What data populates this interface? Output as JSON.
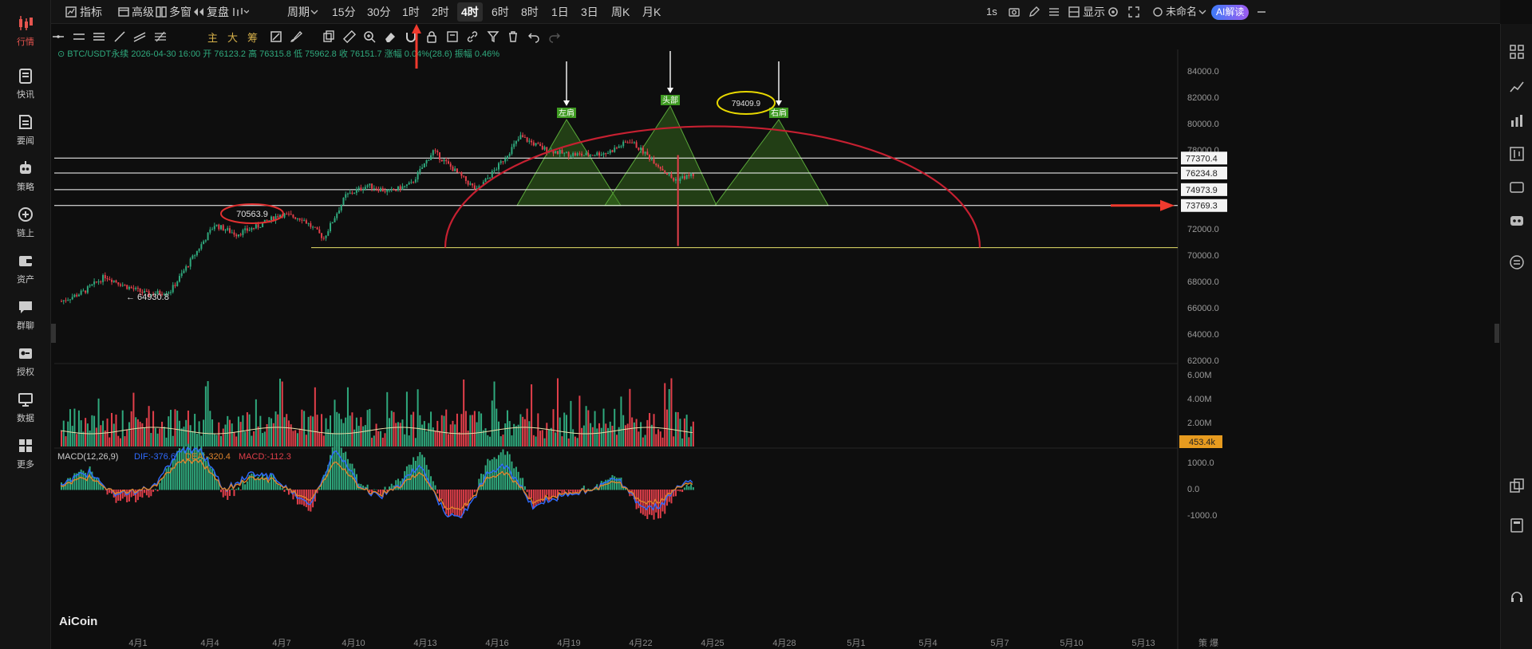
{
  "sidebar": {
    "items": [
      {
        "label": "行情",
        "icon": "candlestick-icon"
      },
      {
        "label": "快讯",
        "icon": "flash-news-icon"
      },
      {
        "label": "要闻",
        "icon": "news-icon"
      },
      {
        "label": "策略",
        "icon": "robot-icon"
      },
      {
        "label": "链上",
        "icon": "chain-icon"
      },
      {
        "label": "资产",
        "icon": "wallet-icon"
      },
      {
        "label": "群聊",
        "icon": "chat-icon"
      },
      {
        "label": "授权",
        "icon": "key-icon"
      },
      {
        "label": "数据",
        "icon": "monitor-icon"
      },
      {
        "label": "更多",
        "icon": "grid-icon"
      }
    ]
  },
  "toolbar": {
    "indicators": "指标",
    "advanced": "高级",
    "multi_window": "多窗",
    "replay": "复盘",
    "period": "周期",
    "intervals": [
      "15分",
      "30分",
      "1时",
      "2时",
      "4时",
      "6时",
      "8时",
      "1日",
      "3日",
      "周K",
      "月K"
    ],
    "active_interval": "4时",
    "refresh": "1s",
    "display": "显示",
    "layout_name": "未命名",
    "ai_label": "AI解读"
  },
  "drawing": {
    "text_tools": [
      "主",
      "大",
      "筹"
    ]
  },
  "chart": {
    "info": {
      "symbol": "BTC/USDT永续",
      "time": "2026-04-30 16:00",
      "open_label": "开",
      "open": "76123.2",
      "high_label": "高",
      "high": "76315.8",
      "low_label": "低",
      "low": "75962.8",
      "close_label": "收",
      "close": "76151.7",
      "change_label": "涨幅",
      "change": "0.04%(28.6)",
      "amp_label": "振幅",
      "amp": "0.46%"
    },
    "price_ticks": [
      "84000.0",
      "82000.0",
      "80000.0",
      "78000.0",
      "76000.0",
      "74000.0",
      "72000.0",
      "70000.0",
      "68000.0",
      "66000.0",
      "64000.0",
      "62000.0"
    ],
    "level_tags": [
      "77370.4",
      "76234.8",
      "74973.9",
      "73769.3"
    ],
    "annotations": {
      "left_shoulder": "左肩",
      "head": "头部",
      "right_shoulder": "右肩",
      "circled_high": "79409.9",
      "circled_low": "70563.9",
      "min_label": "← 64930.8"
    },
    "volume_ticks": [
      "6.00M",
      "4.00M",
      "2.00M"
    ],
    "volume_current": "453.4k",
    "macd": {
      "title": "MACD(12,26,9)",
      "dif": "DIF:-376.6",
      "dea": "DEA:-320.4",
      "macd": "MACD:-112.3"
    },
    "macd_ticks": [
      "1000.0",
      "0.0",
      "-1000.0"
    ],
    "dates": [
      "4月1",
      "4月4",
      "4月7",
      "4月10",
      "4月13",
      "4月16",
      "4月19",
      "4月22",
      "4月25",
      "4月28",
      "5月1",
      "5月4",
      "5月7",
      "5月10",
      "5月13"
    ],
    "corner_label": "策 爆",
    "watermark": "AiCoin",
    "colors": {
      "up": "#2fa97d",
      "down": "#e23f4a",
      "ellipse": "#c62031",
      "pattern_fill": "#3b7a1f",
      "level_line": "#ffffff",
      "support_line": "#e8e36a",
      "dif": "#2f6bff",
      "dea": "#e0842c",
      "volume_ma": "#e8dda8"
    }
  },
  "chart_data": {
    "type": "candlestick",
    "symbol": "BTC/USDT永续",
    "interval": "4时",
    "x_range": [
      "4月1",
      "5月13"
    ],
    "ylim": [
      61000,
      85000
    ],
    "levels": [
      77370.4,
      76234.8,
      74973.9,
      73769.3,
      70563.9
    ],
    "ohlc_path": [
      {
        "date": "4月1",
        "price": 66500
      },
      {
        "date": "4月2",
        "price": 67200
      },
      {
        "date": "4月3",
        "price": 68400
      },
      {
        "date": "4月4",
        "price": 67600
      },
      {
        "date": "4月5",
        "price": 67000
      },
      {
        "date": "4月6",
        "price": 67300
      },
      {
        "date": "4月7",
        "price": 69800
      },
      {
        "date": "4月8",
        "price": 72300
      },
      {
        "date": "4月9",
        "price": 71600
      },
      {
        "date": "4月10",
        "price": 72200
      },
      {
        "date": "4月11",
        "price": 73100
      },
      {
        "date": "4月12",
        "price": 72800
      },
      {
        "date": "4月13",
        "price": 71300
      },
      {
        "date": "4月14",
        "price": 74500
      },
      {
        "date": "4月15",
        "price": 75300
      },
      {
        "date": "4月16",
        "price": 74800
      },
      {
        "date": "4月17",
        "price": 75400
      },
      {
        "date": "4月18",
        "price": 77900
      },
      {
        "date": "4月19",
        "price": 76400
      },
      {
        "date": "4月20",
        "price": 74900
      },
      {
        "date": "4月21",
        "price": 76800
      },
      {
        "date": "4月22",
        "price": 79000
      },
      {
        "date": "4月23",
        "price": 78100
      },
      {
        "date": "4月24",
        "price": 77700
      },
      {
        "date": "4月25",
        "price": 77600
      },
      {
        "date": "4月26",
        "price": 77800
      },
      {
        "date": "4月27",
        "price": 78700
      },
      {
        "date": "4月28",
        "price": 77300
      },
      {
        "date": "4月29",
        "price": 75700
      },
      {
        "date": "4月30",
        "price": 76151.7
      }
    ]
  }
}
